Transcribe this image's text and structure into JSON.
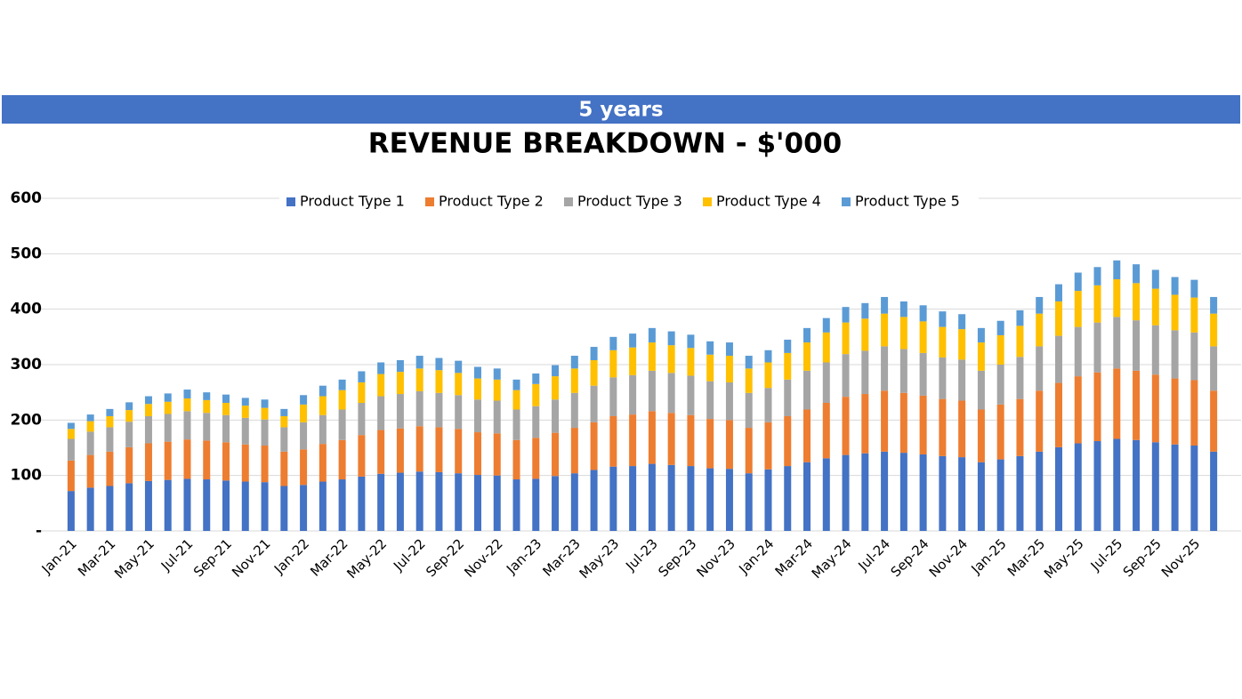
{
  "header": {
    "banner": "5 years"
  },
  "chart_data": {
    "type": "stacked-bar",
    "title": "REVENUE BREAKDOWN - $'000",
    "categories": [
      "Jan-21",
      null,
      "Mar-21",
      null,
      "May-21",
      null,
      "Jul-21",
      null,
      "Sep-21",
      null,
      "Nov-21",
      null,
      "Jan-22",
      null,
      "Mar-22",
      null,
      "May-22",
      null,
      "Jul-22",
      null,
      "Sep-22",
      null,
      "Nov-22",
      null,
      "Jan-23",
      null,
      "Mar-23",
      null,
      "May-23",
      null,
      "Jul-23",
      null,
      "Sep-23",
      null,
      "Nov-23",
      null,
      "Jan-24",
      null,
      "Mar-24",
      null,
      "May-24",
      null,
      "Jul-24",
      null,
      "Sep-24",
      null,
      "Nov-24",
      null,
      "Jan-25",
      null,
      "Mar-25",
      null,
      "May-25",
      null,
      "Jul-25",
      null,
      "Sep-25",
      null,
      "Nov-25",
      null
    ],
    "series": [
      {
        "name": "Product Type 1",
        "color": "#4472c4",
        "values": [
          72,
          78,
          81,
          86,
          90,
          92,
          94,
          93,
          91,
          89,
          88,
          81,
          83,
          89,
          93,
          98,
          103,
          105,
          107,
          106,
          104,
          101,
          100,
          93,
          94,
          99,
          104,
          110,
          116,
          117,
          121,
          119,
          117,
          113,
          112,
          104,
          111,
          117,
          124,
          131,
          137,
          140,
          143,
          141,
          138,
          135,
          133,
          124,
          129,
          135,
          143,
          151,
          158,
          162,
          166,
          164,
          160,
          156,
          154,
          143
        ]
      },
      {
        "name": "Product Type 2",
        "color": "#ed7d31",
        "values": [
          55,
          59,
          62,
          65,
          68,
          69,
          71,
          70,
          69,
          67,
          66,
          62,
          64,
          68,
          71,
          75,
          79,
          80,
          82,
          81,
          80,
          77,
          76,
          71,
          74,
          78,
          82,
          86,
          91,
          93,
          95,
          94,
          92,
          89,
          88,
          82,
          85,
          90,
          95,
          100,
          105,
          107,
          110,
          108,
          106,
          103,
          102,
          95,
          99,
          103,
          110,
          116,
          121,
          124,
          127,
          125,
          122,
          119,
          118,
          110
        ]
      },
      {
        "name": "Product Type 3",
        "color": "#a5a5a5",
        "values": [
          39,
          42,
          44,
          46,
          49,
          50,
          51,
          50,
          49,
          48,
          47,
          44,
          49,
          52,
          55,
          58,
          61,
          62,
          63,
          62,
          61,
          59,
          59,
          55,
          57,
          60,
          63,
          66,
          70,
          71,
          73,
          72,
          71,
          68,
          68,
          63,
          62,
          66,
          70,
          73,
          77,
          78,
          80,
          79,
          77,
          75,
          74,
          70,
          72,
          76,
          80,
          85,
          89,
          90,
          93,
          91,
          89,
          87,
          86,
          80
        ]
      },
      {
        "name": "Product Type 4",
        "color": "#ffc000",
        "values": [
          18,
          19,
          20,
          21,
          22,
          22,
          23,
          23,
          22,
          22,
          21,
          20,
          32,
          34,
          35,
          37,
          40,
          40,
          41,
          41,
          40,
          38,
          38,
          35,
          40,
          42,
          44,
          46,
          49,
          50,
          51,
          50,
          50,
          48,
          48,
          44,
          46,
          48,
          51,
          54,
          57,
          58,
          59,
          58,
          57,
          55,
          55,
          51,
          53,
          56,
          59,
          62,
          65,
          67,
          68,
          67,
          66,
          64,
          63,
          59
        ]
      },
      {
        "name": "Product Type 5",
        "color": "#5b9bd5",
        "values": [
          11,
          12,
          13,
          14,
          14,
          15,
          16,
          14,
          15,
          14,
          15,
          13,
          17,
          19,
          19,
          20,
          21,
          21,
          23,
          22,
          22,
          21,
          20,
          19,
          19,
          20,
          23,
          24,
          24,
          25,
          26,
          25,
          24,
          24,
          24,
          23,
          22,
          24,
          26,
          26,
          28,
          28,
          30,
          28,
          29,
          28,
          27,
          26,
          26,
          28,
          30,
          31,
          33,
          33,
          34,
          34,
          34,
          32,
          32,
          30
        ]
      }
    ],
    "ylim": [
      0,
      600
    ],
    "yticks": [
      {
        "value": 0,
        "label": "-"
      },
      100,
      200,
      300,
      400,
      500,
      600
    ],
    "grid": true,
    "legend": "top"
  }
}
